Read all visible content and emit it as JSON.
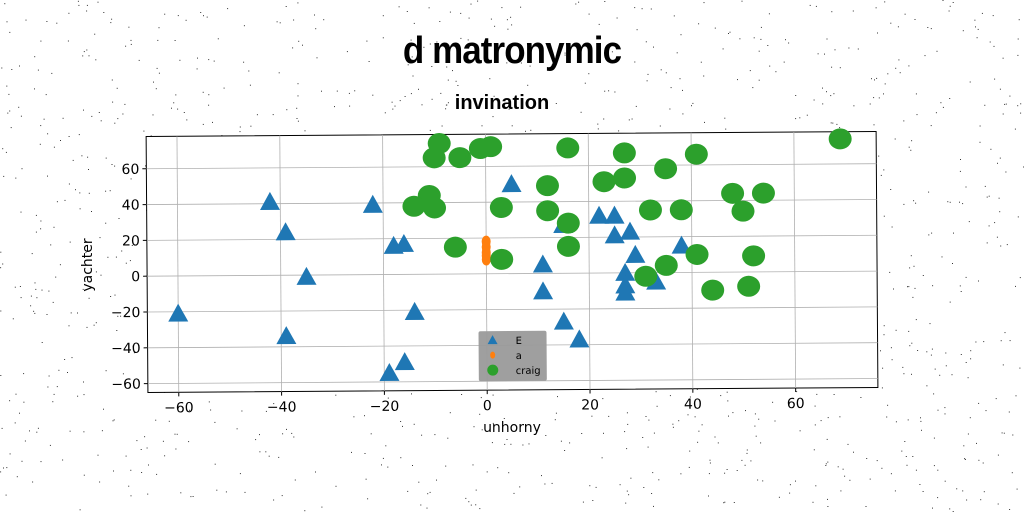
{
  "chart_data": {
    "type": "scatter",
    "title": "d matronymic",
    "subtitle": "invination",
    "xlabel": "unhorny",
    "ylabel": "yachter",
    "xlim": [
      -66,
      76
    ],
    "ylim": [
      -65,
      78
    ],
    "xticks": [
      -60,
      -40,
      -20,
      0,
      20,
      40,
      60
    ],
    "yticks": [
      -60,
      -40,
      -20,
      0,
      20,
      40,
      60
    ],
    "grid": true,
    "legend_position": "lower-center",
    "series": [
      {
        "name": "E",
        "marker": "triangle",
        "color": "#1f77b4",
        "points": [
          [
            -60,
            -21
          ],
          [
            -42,
            41
          ],
          [
            -39,
            24
          ],
          [
            -39,
            -34
          ],
          [
            -35,
            -1
          ],
          [
            -22,
            39
          ],
          [
            -18,
            16
          ],
          [
            -16,
            17
          ],
          [
            -14,
            -21
          ],
          [
            -16,
            -49
          ],
          [
            -19,
            -55
          ],
          [
            5,
            50
          ],
          [
            11,
            5
          ],
          [
            11,
            -10
          ],
          [
            15,
            -27
          ],
          [
            15,
            27
          ],
          [
            18,
            -37
          ],
          [
            22,
            32
          ],
          [
            25,
            32
          ],
          [
            25,
            21
          ],
          [
            28,
            23
          ],
          [
            29,
            10
          ],
          [
            27,
            0
          ],
          [
            27,
            -7
          ],
          [
            27,
            -11
          ],
          [
            33,
            -5
          ],
          [
            38,
            15
          ]
        ]
      },
      {
        "name": "a",
        "marker": "circle-small",
        "color": "#ff7f0e",
        "points": [
          [
            0,
            18
          ],
          [
            0,
            15
          ],
          [
            0,
            12
          ],
          [
            0,
            10
          ],
          [
            0,
            8
          ]
        ]
      },
      {
        "name": "craig",
        "marker": "circle",
        "color": "#2ca02c",
        "points": [
          [
            -9,
            73
          ],
          [
            -10,
            65
          ],
          [
            -5,
            65
          ],
          [
            -1,
            70
          ],
          [
            1,
            71
          ],
          [
            16,
            70
          ],
          [
            27,
            67
          ],
          [
            35,
            58
          ],
          [
            41,
            66
          ],
          [
            -11,
            44
          ],
          [
            -14,
            38
          ],
          [
            -10,
            37
          ],
          [
            3,
            37
          ],
          [
            12,
            49
          ],
          [
            12,
            35
          ],
          [
            16,
            28
          ],
          [
            23,
            51
          ],
          [
            27,
            53
          ],
          [
            32,
            35
          ],
          [
            38,
            35
          ],
          [
            48,
            44
          ],
          [
            50,
            34
          ],
          [
            54,
            44
          ],
          [
            -6,
            15
          ],
          [
            3,
            8
          ],
          [
            16,
            15
          ],
          [
            31,
            -2
          ],
          [
            35,
            4
          ],
          [
            41,
            10
          ],
          [
            44,
            -10
          ],
          [
            51,
            -8
          ],
          [
            52,
            9
          ],
          [
            69,
            74
          ]
        ]
      }
    ]
  }
}
